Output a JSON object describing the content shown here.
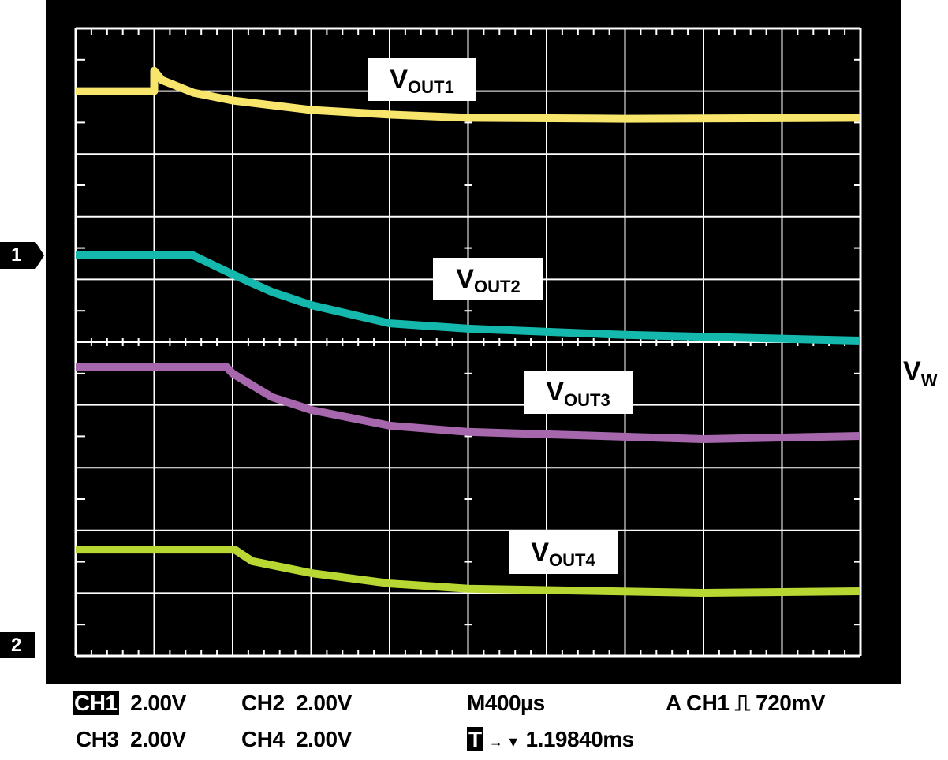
{
  "chart_data": {
    "type": "line",
    "title": "",
    "xlabel": "",
    "ylabel": "",
    "xlim": [
      0,
      4.0
    ],
    "x_unit": "ms",
    "ylim": [
      -10,
      10
    ],
    "y_unit": "V",
    "grid": true,
    "grid_divisions": {
      "x": 10,
      "y": 10
    },
    "background": "#000000",
    "series": [
      {
        "name": "VOUT1",
        "color": "#f7e66b",
        "x": [
          0,
          0.4,
          0.4,
          0.44,
          0.6,
          0.8,
          1.2,
          1.6,
          2.0,
          2.8,
          4.0
        ],
        "y": [
          8.0,
          8.0,
          8.65,
          8.35,
          7.95,
          7.7,
          7.4,
          7.25,
          7.15,
          7.12,
          7.15
        ]
      },
      {
        "name": "VOUT2",
        "color": "#14b8ac",
        "x": [
          0,
          0.59,
          0.8,
          1.0,
          1.2,
          1.6,
          2.0,
          2.8,
          4.0
        ],
        "y": [
          2.79,
          2.79,
          2.16,
          1.6,
          1.18,
          0.6,
          0.43,
          0.23,
          0.05
        ]
      },
      {
        "name": "VOUT3",
        "color": "#a667ad",
        "x": [
          0,
          0.77,
          0.8,
          1.0,
          1.2,
          1.6,
          2.0,
          3.2,
          4.0
        ],
        "y": [
          -0.8,
          -0.8,
          -1.0,
          -1.75,
          -2.16,
          -2.66,
          -2.86,
          -3.09,
          -2.99
        ]
      },
      {
        "name": "VOUT4",
        "color": "#b9d733",
        "x": [
          0,
          0.81,
          0.9,
          1.2,
          1.6,
          2.0,
          3.2,
          4.0
        ],
        "y": [
          -6.61,
          -6.61,
          -6.98,
          -7.36,
          -7.69,
          -7.86,
          -7.99,
          -7.94
        ]
      }
    ]
  },
  "labels": {
    "vout1": {
      "main": "V",
      "sub": "OUT1"
    },
    "vout2": {
      "main": "V",
      "sub": "OUT2"
    },
    "vout3": {
      "main": "V",
      "sub": "OUT3"
    },
    "vout4": {
      "main": "V",
      "sub": "OUT4"
    },
    "vw": {
      "main": "V",
      "sub": "W"
    }
  },
  "markers": {
    "ch1": "1",
    "ch2": "2"
  },
  "readout": {
    "ch1_label": "CH1",
    "ch1_scale": "2.00V",
    "ch2_label": "CH2",
    "ch2_scale": "2.00V",
    "ch3_label": "CH3",
    "ch3_scale": "2.00V",
    "ch4_label": "CH4",
    "ch4_scale": "2.00V",
    "timebase": "M400µs",
    "trigger": "A  CH1 ⎍ 720mV",
    "trigger_pos_icon": "T",
    "trigger_pos_arrow": "→ ▼",
    "trigger_pos": "1.19840ms"
  }
}
